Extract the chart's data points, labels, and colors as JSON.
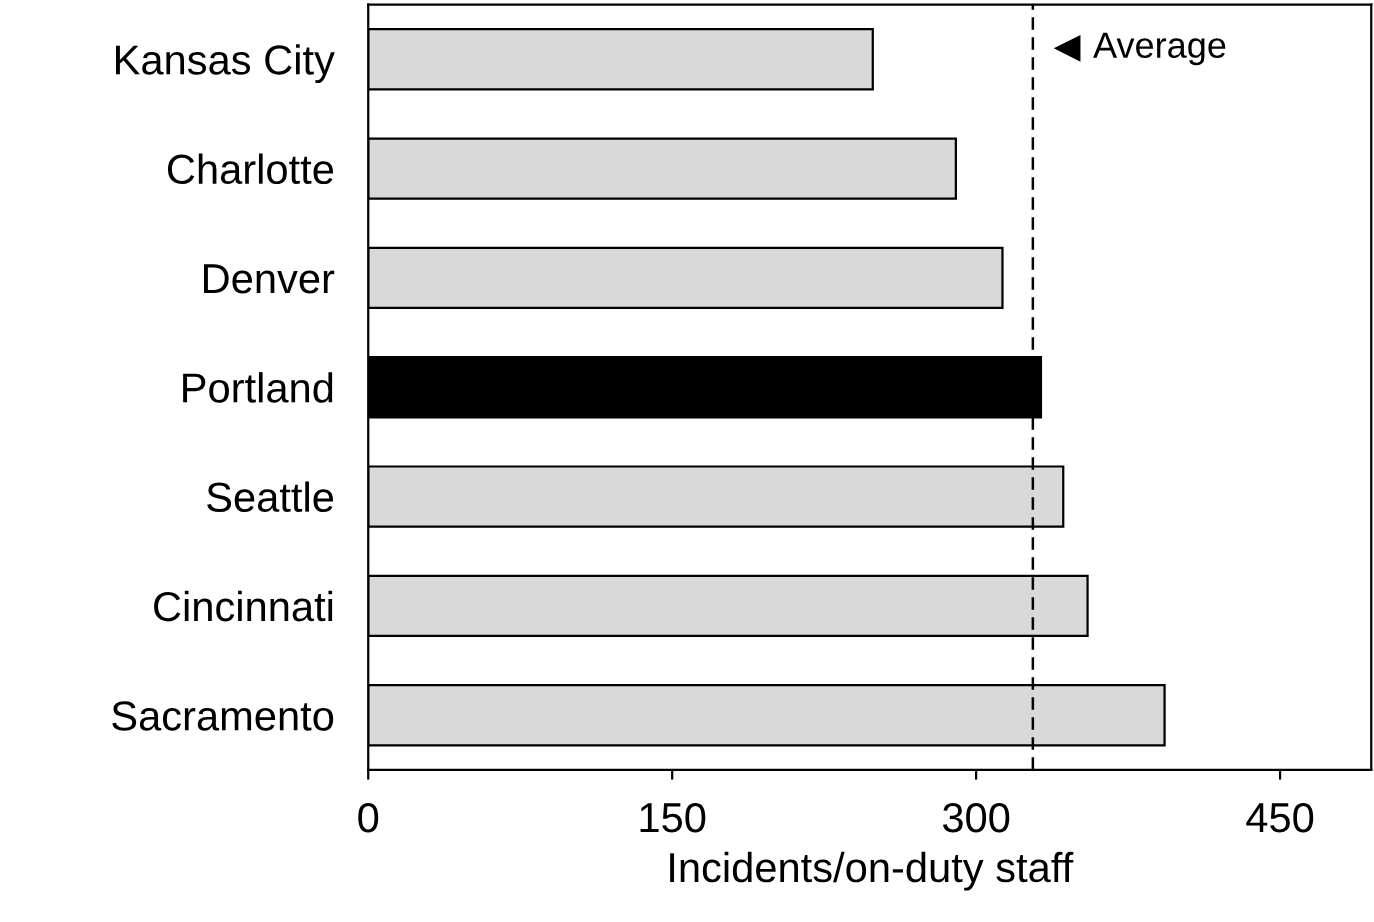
{
  "chart_data": {
    "type": "bar",
    "orientation": "horizontal",
    "xlabel": "Incidents/on-duty staff",
    "categories": [
      "Kansas City",
      "Charlotte",
      "Denver",
      "Portland",
      "Seattle",
      "Cincinnati",
      "Sacramento"
    ],
    "values": [
      249,
      290,
      313,
      332,
      343,
      355,
      393
    ],
    "colors": [
      "#d9d9d9",
      "#d9d9d9",
      "#d9d9d9",
      "#000000",
      "#d9d9d9",
      "#d9d9d9",
      "#d9d9d9"
    ],
    "xlim": [
      0,
      495
    ],
    "xticks": [
      0,
      150,
      300,
      450
    ],
    "grid": false,
    "legend": false,
    "ref_lines": [
      {
        "axis": "x",
        "value": 328,
        "label": "Average",
        "color": "#000000",
        "line_style": "dashed"
      }
    ]
  }
}
